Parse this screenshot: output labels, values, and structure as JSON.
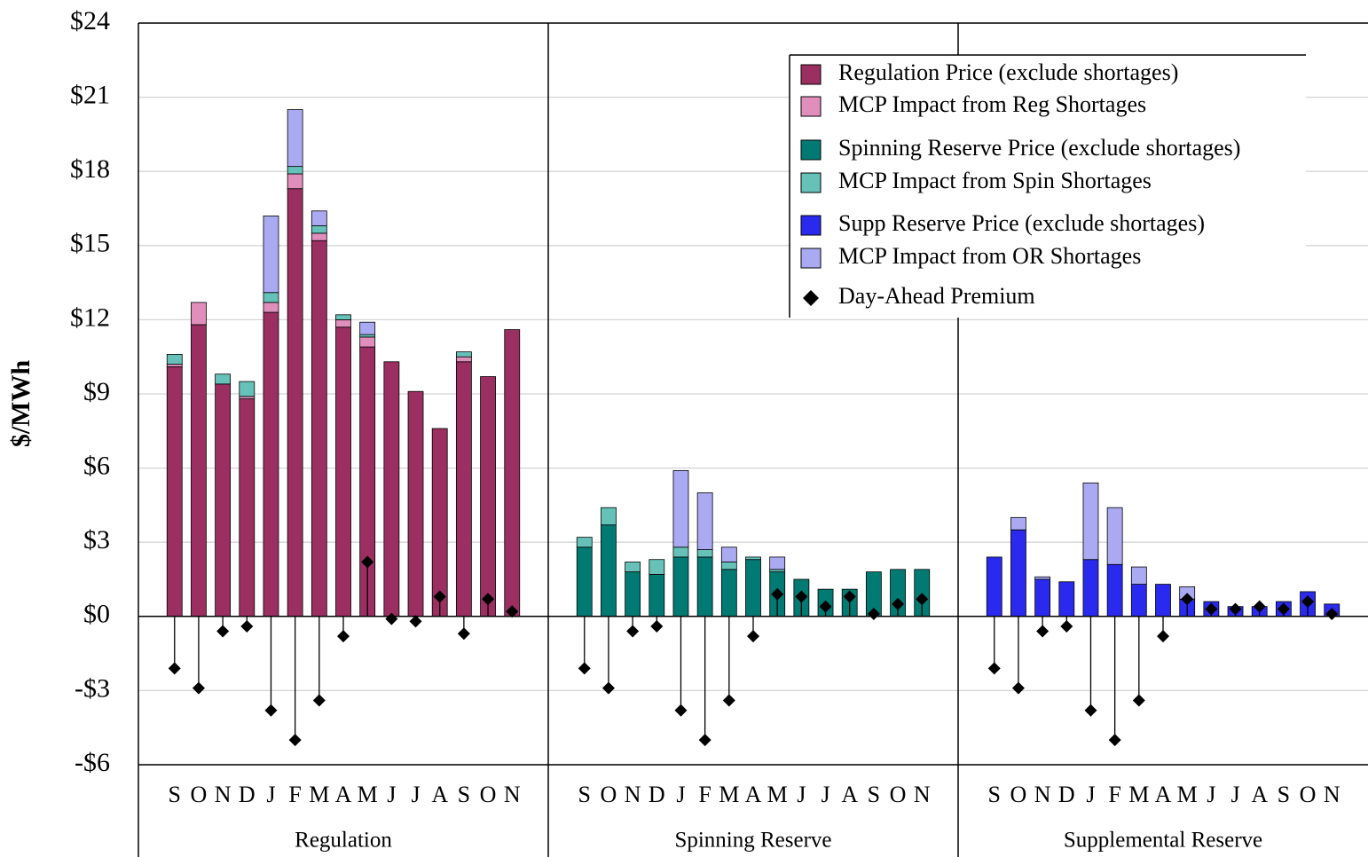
{
  "chart_data": {
    "type": "bar",
    "stacked": true,
    "ylabel": "$/MWh",
    "groups": [
      "Regulation",
      "Spinning Reserve",
      "Supplemental Reserve"
    ],
    "categories": [
      "S",
      "O",
      "N",
      "D",
      "J",
      "F",
      "M",
      "A",
      "M",
      "J",
      "J",
      "A",
      "S",
      "O",
      "N",
      "S",
      "O",
      "N",
      "D",
      "J",
      "F",
      "M",
      "A",
      "M",
      "J",
      "J",
      "A",
      "S",
      "O",
      "N",
      "S",
      "O",
      "N",
      "D",
      "J",
      "F",
      "M",
      "A",
      "M",
      "J",
      "J",
      "A",
      "S",
      "O",
      "N"
    ],
    "series": [
      {
        "name": "Regulation Price (exclude shortages)",
        "color": "#9b2f62",
        "values": [
          10.1,
          11.8,
          9.4,
          8.8,
          12.3,
          17.3,
          15.2,
          11.7,
          10.9,
          10.3,
          9.1,
          7.6,
          10.3,
          9.7,
          11.6,
          null,
          null,
          null,
          null,
          null,
          null,
          null,
          null,
          null,
          null,
          null,
          null,
          null,
          null,
          null,
          null,
          null,
          null,
          null,
          null,
          null,
          null,
          null,
          null,
          null,
          null,
          null,
          null,
          null,
          null
        ]
      },
      {
        "name": "MCP Impact from Reg Shortages",
        "color": "#e08fbc",
        "values": [
          0.1,
          0.9,
          0,
          0.1,
          0.4,
          0.6,
          0.3,
          0.3,
          0.4,
          0,
          0,
          0,
          0.2,
          0,
          0,
          null,
          null,
          null,
          null,
          null,
          null,
          null,
          null,
          null,
          null,
          null,
          null,
          null,
          null,
          null,
          null,
          null,
          null,
          null,
          null,
          null,
          null,
          null,
          null,
          null,
          null,
          null,
          null,
          null,
          null
        ]
      },
      {
        "name": "Spinning Reserve Price (exclude shortages)",
        "color": "#007a72",
        "values": [
          null,
          null,
          null,
          null,
          null,
          null,
          null,
          null,
          null,
          null,
          null,
          null,
          null,
          null,
          null,
          2.8,
          3.7,
          1.8,
          1.7,
          2.4,
          2.4,
          1.9,
          2.3,
          1.8,
          1.5,
          1.1,
          1.1,
          1.8,
          1.9,
          1.9,
          null,
          null,
          null,
          null,
          null,
          null,
          null,
          null,
          null,
          null,
          null,
          null,
          null,
          null,
          null
        ]
      },
      {
        "name": "MCP Impact from Spin Shortages",
        "color": "#66c2b8",
        "values": [
          0.4,
          0,
          0.4,
          0.6,
          0.4,
          0.3,
          0.3,
          0.2,
          0.1,
          0,
          0,
          0,
          0.2,
          0,
          0,
          0.4,
          0.7,
          0.4,
          0.6,
          0.4,
          0.3,
          0.3,
          0.1,
          0.1,
          0,
          0,
          0,
          0,
          0,
          0,
          null,
          null,
          null,
          null,
          null,
          null,
          null,
          null,
          null,
          null,
          null,
          null,
          null,
          null,
          null
        ]
      },
      {
        "name": "Supp Reserve Price (exclude shortages)",
        "color": "#2a2aee",
        "values": [
          null,
          null,
          null,
          null,
          null,
          null,
          null,
          null,
          null,
          null,
          null,
          null,
          null,
          null,
          null,
          null,
          null,
          null,
          null,
          null,
          null,
          null,
          null,
          null,
          null,
          null,
          null,
          null,
          null,
          null,
          2.4,
          3.5,
          1.5,
          1.4,
          2.3,
          2.1,
          1.3,
          1.3,
          0.7,
          0.6,
          0.4,
          0.4,
          0.6,
          1.0,
          0.5
        ]
      },
      {
        "name": "MCP Impact from OR Shortages",
        "color": "#aaaaf2",
        "values": [
          0,
          0,
          0,
          0,
          3.1,
          2.3,
          0.6,
          0,
          0.5,
          0,
          0,
          0,
          0,
          0,
          0,
          0,
          0,
          0,
          0,
          3.1,
          2.3,
          0.6,
          0,
          0.5,
          0,
          0,
          0,
          0,
          0,
          0,
          0,
          0.5,
          0.1,
          0,
          3.1,
          2.3,
          0.7,
          0,
          0.5,
          0,
          0,
          0,
          0,
          0,
          0
        ]
      },
      {
        "name": "Day-Ahead Premium",
        "color": "#000000",
        "marker": "diamond",
        "values": [
          -2.1,
          -2.9,
          -0.6,
          -0.4,
          -3.8,
          -5.0,
          -3.4,
          -0.8,
          2.2,
          -0.1,
          -0.2,
          0.8,
          -0.7,
          0.7,
          0.2,
          -2.1,
          -2.9,
          -0.6,
          -0.4,
          -3.8,
          -5.0,
          -3.4,
          -0.8,
          0.9,
          0.8,
          0.4,
          0.8,
          0.1,
          0.5,
          0.7,
          -2.1,
          -2.9,
          -0.6,
          -0.4,
          -3.8,
          -5.0,
          -3.4,
          -0.8,
          0.7,
          0.3,
          0.3,
          0.4,
          0.3,
          0.6,
          0.1
        ]
      }
    ],
    "ylim": [
      -6,
      24
    ],
    "yticks": [
      {
        "value": -6,
        "label": "-$6"
      },
      {
        "value": -3,
        "label": "-$3"
      },
      {
        "value": 0,
        "label": "$0"
      },
      {
        "value": 3,
        "label": "$3"
      },
      {
        "value": 6,
        "label": "$6"
      },
      {
        "value": 9,
        "label": "$9"
      },
      {
        "value": 12,
        "label": "$12"
      },
      {
        "value": 15,
        "label": "$15"
      },
      {
        "value": 18,
        "label": "$18"
      },
      {
        "value": 21,
        "label": "$21"
      },
      {
        "value": 24,
        "label": "$24"
      }
    ],
    "grid": true,
    "legend": "top-right"
  }
}
